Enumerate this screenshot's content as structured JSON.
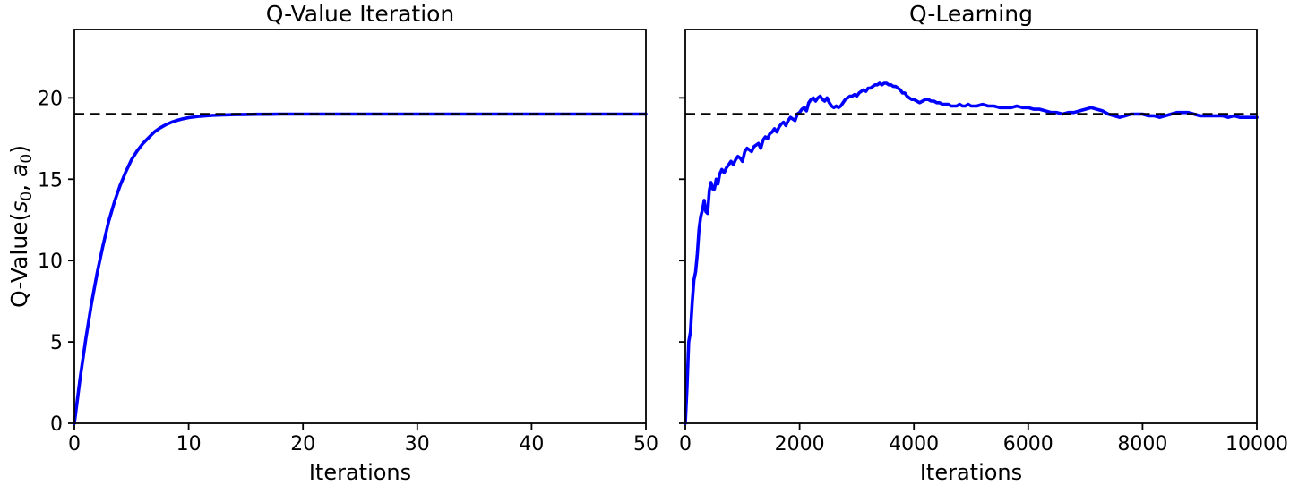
{
  "figure": {
    "background": "#ffffff",
    "shared_ylabel": "Q-Value(s₀, a₀)"
  },
  "colors": {
    "curve": "#0000ff",
    "reference_line": "#000000",
    "axis": "#000000",
    "text": "#000000"
  },
  "ylabel_parts": {
    "prefix": "Q-Value(",
    "s_var": "s",
    "s_sub": "0",
    "comma": ", ",
    "a_var": "a",
    "a_sub": "0",
    "suffix": ")"
  },
  "chart_data": [
    {
      "type": "line",
      "title": "Q-Value Iteration",
      "xlabel": "Iterations",
      "ylabel": "Q-Value(s₀, a₀)",
      "xlim": [
        0,
        50
      ],
      "ylim": [
        0,
        24.2
      ],
      "xticks": [
        0,
        10,
        20,
        30,
        40,
        50
      ],
      "yticks": [
        0,
        5,
        10,
        15,
        20
      ],
      "ytick_labels_visible": true,
      "grid": false,
      "legend": "none",
      "reference_line": {
        "y": 19.0,
        "style": "dashed",
        "color": "#000000"
      },
      "series": [
        {
          "name": "q-value-iteration-curve",
          "color": "#0000ff",
          "x": [
            0,
            0.5,
            1,
            1.5,
            2,
            2.5,
            3,
            3.5,
            4,
            4.5,
            5,
            5.5,
            6,
            6.5,
            7,
            7.5,
            8,
            8.5,
            9,
            9.5,
            10,
            11,
            12,
            13,
            14,
            15,
            16,
            17,
            18,
            19,
            20,
            22,
            24,
            26,
            28,
            30,
            32,
            34,
            36,
            38,
            40,
            42,
            44,
            46,
            48,
            50
          ],
          "y": [
            0,
            2.75,
            5.2,
            7.35,
            9.25,
            10.9,
            12.4,
            13.6,
            14.6,
            15.45,
            16.2,
            16.75,
            17.2,
            17.55,
            17.9,
            18.15,
            18.35,
            18.5,
            18.62,
            18.71,
            18.78,
            18.87,
            18.92,
            18.95,
            18.97,
            18.98,
            18.99,
            18.99,
            19.0,
            19.0,
            19.0,
            19.0,
            19.0,
            19.0,
            19.0,
            19.0,
            19.0,
            19.0,
            19.0,
            19.0,
            19.0,
            19.0,
            19.0,
            19.0,
            19.0,
            19.0
          ]
        }
      ]
    },
    {
      "type": "line",
      "title": "Q-Learning",
      "xlabel": "Iterations",
      "ylabel": "Q-Value(s₀, a₀)",
      "xlim": [
        0,
        10000
      ],
      "ylim": [
        0,
        24.2
      ],
      "xticks": [
        0,
        2000,
        4000,
        6000,
        8000,
        10000
      ],
      "yticks": [
        0,
        5,
        10,
        15,
        20
      ],
      "ytick_labels_visible": false,
      "grid": false,
      "legend": "none",
      "reference_line": {
        "y": 19.0,
        "style": "dashed",
        "color": "#000000"
      },
      "series": [
        {
          "name": "q-learning-curve",
          "color": "#0000ff",
          "x": [
            0,
            30,
            60,
            90,
            120,
            150,
            180,
            210,
            240,
            270,
            300,
            330,
            360,
            390,
            420,
            450,
            480,
            510,
            540,
            570,
            600,
            640,
            680,
            720,
            760,
            800,
            840,
            880,
            920,
            960,
            1000,
            1040,
            1080,
            1120,
            1160,
            1200,
            1240,
            1280,
            1320,
            1360,
            1400,
            1440,
            1480,
            1520,
            1560,
            1600,
            1640,
            1680,
            1720,
            1760,
            1800,
            1840,
            1880,
            1920,
            1960,
            2000,
            2040,
            2080,
            2120,
            2160,
            2200,
            2240,
            2280,
            2320,
            2360,
            2400,
            2440,
            2480,
            2520,
            2560,
            2600,
            2640,
            2680,
            2720,
            2760,
            2800,
            2840,
            2880,
            2920,
            2960,
            3000,
            3040,
            3080,
            3120,
            3160,
            3200,
            3240,
            3280,
            3320,
            3360,
            3400,
            3440,
            3480,
            3520,
            3560,
            3600,
            3640,
            3680,
            3720,
            3760,
            3800,
            3840,
            3880,
            3920,
            3960,
            4000,
            4050,
            4100,
            4150,
            4200,
            4250,
            4300,
            4350,
            4400,
            4450,
            4500,
            4550,
            4600,
            4650,
            4700,
            4750,
            4800,
            4850,
            4900,
            4950,
            5000,
            5100,
            5200,
            5300,
            5400,
            5500,
            5600,
            5700,
            5800,
            5900,
            6000,
            6100,
            6200,
            6300,
            6400,
            6500,
            6600,
            6700,
            6800,
            6900,
            7000,
            7100,
            7200,
            7300,
            7400,
            7500,
            7600,
            7700,
            7800,
            7900,
            8000,
            8100,
            8200,
            8300,
            8400,
            8500,
            8600,
            8700,
            8800,
            8900,
            9000,
            9100,
            9200,
            9300,
            9400,
            9500,
            9600,
            9700,
            9800,
            9900,
            10000
          ],
          "y": [
            0.0,
            2.2,
            5.0,
            5.6,
            7.4,
            8.8,
            9.3,
            10.4,
            11.9,
            12.7,
            13.1,
            13.7,
            13.0,
            12.9,
            14.3,
            14.8,
            14.4,
            14.4,
            15.0,
            14.7,
            15.3,
            15.6,
            15.4,
            15.7,
            15.9,
            16.1,
            15.9,
            16.2,
            16.4,
            16.3,
            16.1,
            16.7,
            16.9,
            16.8,
            16.7,
            17.0,
            17.1,
            17.2,
            16.9,
            17.4,
            17.6,
            17.5,
            17.8,
            17.9,
            18.1,
            17.9,
            18.2,
            18.4,
            18.5,
            18.3,
            18.6,
            18.8,
            18.7,
            18.6,
            19.0,
            19.1,
            19.3,
            19.4,
            19.2,
            19.7,
            19.9,
            20.0,
            19.8,
            20.0,
            20.1,
            19.9,
            19.8,
            20.0,
            19.7,
            19.5,
            19.4,
            19.5,
            19.4,
            19.5,
            19.7,
            19.9,
            20.0,
            20.1,
            20.1,
            20.2,
            20.1,
            20.3,
            20.4,
            20.5,
            20.4,
            20.6,
            20.6,
            20.7,
            20.8,
            20.8,
            20.9,
            20.8,
            20.9,
            20.9,
            20.8,
            20.8,
            20.7,
            20.7,
            20.6,
            20.5,
            20.3,
            20.3,
            20.1,
            20.0,
            19.9,
            19.9,
            19.8,
            19.7,
            19.8,
            19.9,
            19.9,
            19.8,
            19.8,
            19.7,
            19.7,
            19.6,
            19.6,
            19.6,
            19.5,
            19.5,
            19.5,
            19.6,
            19.5,
            19.5,
            19.6,
            19.5,
            19.5,
            19.6,
            19.5,
            19.5,
            19.4,
            19.4,
            19.4,
            19.5,
            19.4,
            19.4,
            19.3,
            19.3,
            19.2,
            19.1,
            19.1,
            19.0,
            19.1,
            19.1,
            19.2,
            19.3,
            19.4,
            19.3,
            19.2,
            19.0,
            18.9,
            18.8,
            18.9,
            19.0,
            19.0,
            19.0,
            18.9,
            18.9,
            18.8,
            18.9,
            19.0,
            19.1,
            19.1,
            19.1,
            19.0,
            18.9,
            18.9,
            18.9,
            18.9,
            18.9,
            18.8,
            18.9,
            18.8,
            18.8,
            18.8,
            18.8
          ]
        }
      ]
    }
  ]
}
